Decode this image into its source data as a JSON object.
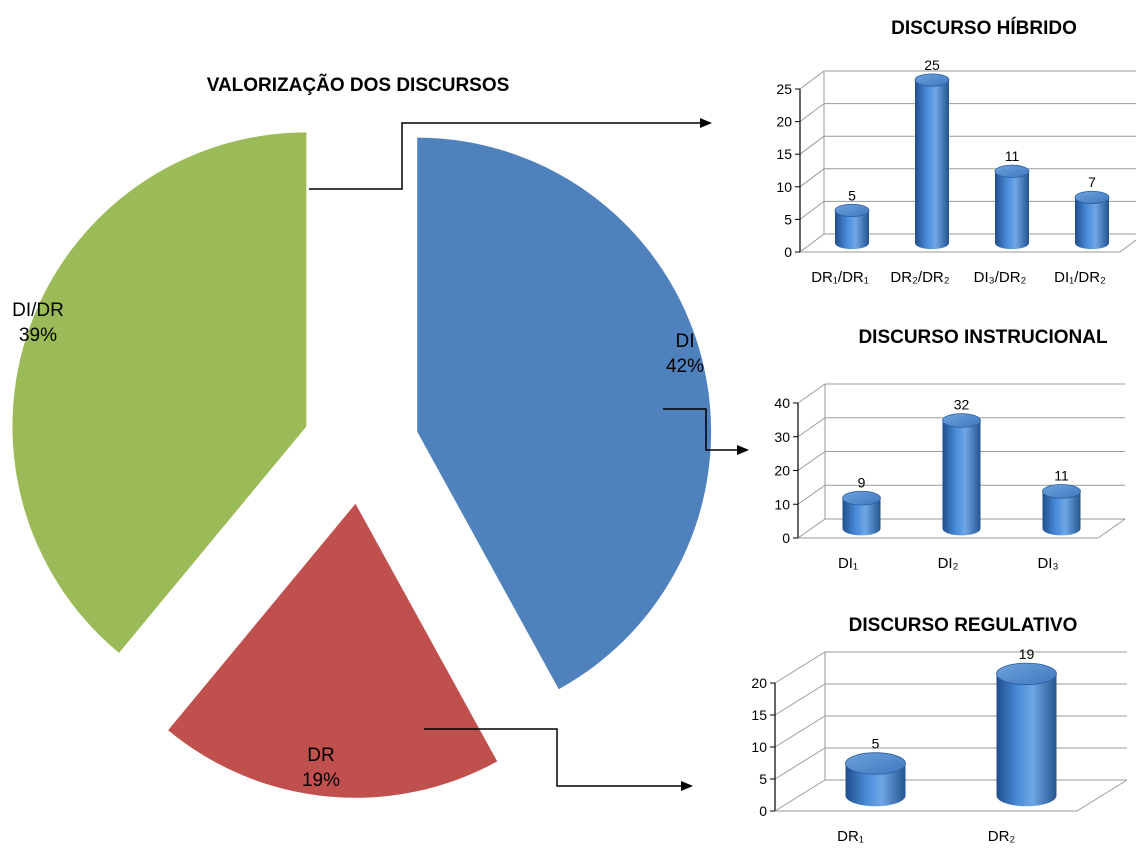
{
  "colors": {
    "DI": "#4F81BD",
    "DR": "#C0504D",
    "DI/DR": "#9BBB59",
    "bar": "#3D78C2"
  },
  "chart_data": [
    {
      "type": "pie",
      "title": "VALORIZAÇÃO DOS DISCURSOS",
      "slices": [
        {
          "label": "DI",
          "value": 42,
          "value_label": "42%"
        },
        {
          "label": "DR",
          "value": 19,
          "value_label": "19%"
        },
        {
          "label": "DI/DR",
          "value": 39,
          "value_label": "39%"
        }
      ]
    },
    {
      "type": "bar",
      "title": "DISCURSO HÍBRIDO",
      "categories": [
        "DR₁/DR₁",
        "DR₂/DR₂",
        "DI₃/DR₂",
        "DI₁/DR₂"
      ],
      "values": [
        5,
        25,
        11,
        7
      ],
      "ylim": [
        0,
        25
      ],
      "yticks": [
        0,
        5,
        10,
        15,
        20,
        25
      ],
      "grid": true
    },
    {
      "type": "bar",
      "title": "DISCURSO INSTRUCIONAL",
      "categories": [
        "DI₁",
        "DI₂",
        "DI₃"
      ],
      "values": [
        9,
        32,
        11
      ],
      "ylim": [
        0,
        40
      ],
      "yticks": [
        0,
        10,
        20,
        30,
        40
      ],
      "grid": true
    },
    {
      "type": "bar",
      "title": "DISCURSO REGULATIVO",
      "categories": [
        "DR₁",
        "DR₂"
      ],
      "values": [
        5,
        19
      ],
      "ylim": [
        0,
        20
      ],
      "yticks": [
        0,
        5,
        10,
        15,
        20
      ],
      "grid": true
    }
  ]
}
